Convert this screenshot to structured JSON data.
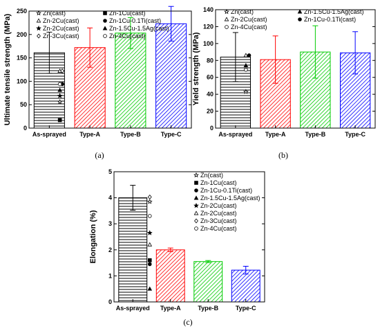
{
  "chart_data": [
    {
      "type": "bar",
      "panel": "(a)",
      "ylabel": "Ultimate tensile strength  (MPa)",
      "xlabel": "",
      "ylim": [
        0,
        250
      ],
      "yticks": [
        0,
        50,
        100,
        150,
        200,
        250
      ],
      "categories": [
        "As-sprayed",
        "Type-A",
        "Type-B",
        "Type-C"
      ],
      "values": [
        161,
        172,
        203,
        223
      ],
      "errors": [
        44,
        42,
        33,
        37
      ],
      "bar_styles": [
        "hlines",
        "red-diag",
        "green-diag",
        "blue-diag"
      ],
      "bar_colors": [
        "#000000",
        "#ff0000",
        "#00cc00",
        "#0000ff"
      ],
      "cast_points": [
        {
          "label": "Zn(cast)",
          "marker": "star-open",
          "x": 1.26,
          "y": 56
        },
        {
          "label": "Zn-1Cu(cast)",
          "marker": "square",
          "x": 1.26,
          "y": 17
        },
        {
          "label": "Zn-2Cu(cast)",
          "marker": "triangle-open",
          "x": 1.26,
          "y": 122
        },
        {
          "label": "Zn-1Cu-0.1Ti(cast)",
          "marker": "circle",
          "x": 1.32,
          "y": 94
        },
        {
          "label": "Zn-2Cu(cast)",
          "marker": "star",
          "x": 1.26,
          "y": 69
        },
        {
          "label": "Zn-1.5Cu-1.5Ag(cast)",
          "marker": "triangle",
          "x": 1.26,
          "y": 81
        },
        {
          "label": "Zn-3Cu(cast)",
          "marker": "diamond-open",
          "x": 1.32,
          "y": 122
        },
        {
          "label": "Zn-4Cu(cast)",
          "marker": "circle-open",
          "x": 1.26,
          "y": 94
        }
      ],
      "legend": [
        {
          "label": "Zn(cast)",
          "marker": "star-open"
        },
        {
          "label": "Zn-1Cu(cast)",
          "marker": "square"
        },
        {
          "label": "Zn-2Cu(cast)",
          "marker": "triangle-open"
        },
        {
          "label": "Zn-1Cu-0.1Ti(cast)",
          "marker": "circle"
        },
        {
          "label": "Zn-2Cu(cast)",
          "marker": "star"
        },
        {
          "label": "Zn-1.5Cu-1.5Ag(cast)",
          "marker": "triangle"
        },
        {
          "label": "Zn-3Cu(cast)",
          "marker": "diamond-open"
        },
        {
          "label": "Zn-4Cu(cast)",
          "marker": "circle-open"
        }
      ]
    },
    {
      "type": "bar",
      "panel": "(b)",
      "ylabel": "Yield strength  (MPa)",
      "xlabel": "",
      "ylim": [
        0,
        140
      ],
      "yticks": [
        0,
        20,
        40,
        60,
        80,
        100,
        120,
        140
      ],
      "categories": [
        "As-sprayed",
        "Type-A",
        "Type-B",
        "Type-C"
      ],
      "values": [
        84,
        81,
        90,
        89
      ],
      "errors": [
        29,
        28,
        31,
        25
      ],
      "bar_styles": [
        "hlines",
        "red-diag",
        "green-diag",
        "blue-diag"
      ],
      "bar_colors": [
        "#000000",
        "#ff0000",
        "#00cc00",
        "#0000ff"
      ],
      "cast_points": [
        {
          "label": "Zn(cast)",
          "marker": "star-open",
          "x": 1.26,
          "y": 43
        },
        {
          "label": "Zn-2Cu(cast)",
          "marker": "triangle-open",
          "x": 1.26,
          "y": 86
        },
        {
          "label": "Zn-1.5Cu-1.5Ag(cast)",
          "marker": "triangle",
          "x": 1.26,
          "y": 74
        },
        {
          "label": "Zn-1Cu-0.1Ti(cast)",
          "marker": "circle",
          "x": 1.34,
          "y": 86
        },
        {
          "label": "Zn-4Cu(cast)",
          "marker": "circle-open",
          "x": 1.26,
          "y": 69
        }
      ],
      "legend": [
        {
          "label": "Zn(cast)",
          "marker": "star-open"
        },
        {
          "label": "Zn-1.5Cu-1.5Ag(cast)",
          "marker": "triangle"
        },
        {
          "label": "Zn-2Cu(cast)",
          "marker": "triangle-open"
        },
        {
          "label": "Zn-1Cu-0.1Ti(cast)",
          "marker": "circle"
        },
        {
          "label": "Zn-4Cu(cast)",
          "marker": "circle-open"
        }
      ]
    },
    {
      "type": "bar",
      "panel": "(c)",
      "ylabel": "Elongation (%)",
      "xlabel": "",
      "ylim": [
        0,
        5
      ],
      "yticks": [
        0,
        1,
        2,
        3,
        4,
        5
      ],
      "categories": [
        "As-sprayed",
        "Type-A",
        "Type-B",
        "Type-C"
      ],
      "values": [
        4.0,
        2.0,
        1.55,
        1.22
      ],
      "errors": [
        0.48,
        0.07,
        0.04,
        0.15
      ],
      "bar_styles": [
        "hlines",
        "red-diag",
        "green-diag",
        "blue-diag"
      ],
      "bar_colors": [
        "#000000",
        "#ff0000",
        "#00cc00",
        "#0000ff"
      ],
      "cast_points": [
        {
          "label": "Zn(cast)",
          "marker": "star-open",
          "x": 1.45,
          "y": 3.85
        },
        {
          "label": "Zn-1Cu(cast)",
          "marker": "square",
          "x": 1.45,
          "y": 1.6
        },
        {
          "label": "Zn-1Cu-0.1Ti(cast)",
          "marker": "circle",
          "x": 1.45,
          "y": 1.45
        },
        {
          "label": "Zn-1.5Cu-1.5Ag(cast)",
          "marker": "triangle",
          "x": 1.45,
          "y": 0.5
        },
        {
          "label": "Zn-2Cu(cast)",
          "marker": "star",
          "x": 1.45,
          "y": 2.65
        },
        {
          "label": "Zn-2Cu(cast)",
          "marker": "triangle-open",
          "x": 1.45,
          "y": 2.2
        },
        {
          "label": "Zn-3Cu(cast)",
          "marker": "diamond-open",
          "x": 1.45,
          "y": 4.03
        },
        {
          "label": "Zn-4Cu(cast)",
          "marker": "circle-open",
          "x": 1.45,
          "y": 3.3
        }
      ],
      "legend": [
        {
          "label": "Zn(cast)",
          "marker": "star-open"
        },
        {
          "label": "Zn-1Cu(cast)",
          "marker": "square"
        },
        {
          "label": "Zn-1Cu-0.1Ti(cast)",
          "marker": "circle"
        },
        {
          "label": "Zn-1.5Cu-1.5Ag(cast)",
          "marker": "triangle"
        },
        {
          "label": "Zn-2Cu(cast)",
          "marker": "star"
        },
        {
          "label": "Zn-2Cu(cast)",
          "marker": "triangle-open"
        },
        {
          "label": "Zn-3Cu(cast)",
          "marker": "diamond-open"
        },
        {
          "label": "Zn-4Cu(cast)",
          "marker": "circle-open"
        }
      ]
    }
  ]
}
